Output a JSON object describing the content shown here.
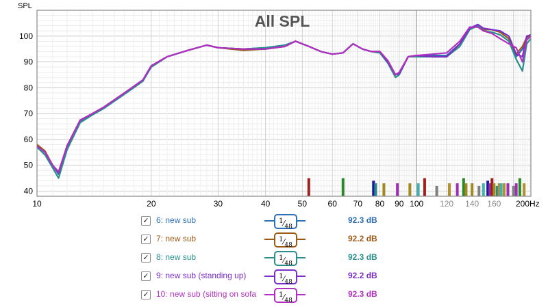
{
  "chart_data": {
    "type": "line",
    "title": "All SPL",
    "ylabel": "SPL",
    "xlabel": "",
    "x_unit_label": "200Hz",
    "x_scale": "log",
    "xlim": [
      10,
      200
    ],
    "ylim": [
      38,
      110
    ],
    "y_ticks": [
      40,
      50,
      60,
      70,
      80,
      90,
      100
    ],
    "x_ticks": [
      10,
      20,
      30,
      40,
      50,
      60,
      70,
      80,
      90,
      100,
      120,
      140,
      160
    ],
    "x_tick_labels": [
      "10",
      "20",
      "30",
      "40",
      "50",
      "60",
      "70",
      "80",
      "90",
      "100",
      "120",
      "140",
      "160"
    ],
    "grid": true,
    "x": [
      10,
      10.5,
      11,
      11.4,
      12,
      13,
      14,
      15,
      17,
      19,
      20,
      22,
      25,
      28,
      30,
      35,
      40,
      45,
      48,
      52,
      56,
      60,
      64,
      68,
      72,
      76,
      80,
      84,
      88,
      90,
      95,
      100,
      110,
      120,
      130,
      138,
      145,
      150,
      158,
      166,
      175,
      183,
      190,
      195,
      200
    ],
    "series": [
      {
        "color": "#2f6fb6",
        "values": [
          57.5,
          55,
          50,
          46.5,
          57,
          67,
          70,
          72.5,
          78,
          83,
          88,
          92,
          94.5,
          96.5,
          95.5,
          95,
          95.5,
          96.5,
          98,
          96,
          94,
          93,
          93.5,
          97,
          95,
          94,
          93.5,
          90,
          85,
          85.5,
          92,
          92.5,
          92.5,
          92.5,
          97,
          103,
          104,
          102.5,
          102.5,
          101.5,
          99,
          92,
          95,
          99.5,
          100
        ]
      },
      {
        "color": "#9c5a16",
        "values": [
          58,
          55.5,
          50,
          47,
          57.5,
          67.5,
          70,
          72.5,
          78,
          83,
          88,
          92,
          94.5,
          96.5,
          95.5,
          94.5,
          95,
          96,
          98,
          96,
          94,
          93,
          93.5,
          97,
          95,
          94,
          94,
          90.5,
          85,
          85.5,
          92,
          92.5,
          92,
          92,
          97,
          103,
          104,
          102.5,
          102.5,
          101.5,
          99,
          93,
          96,
          99.5,
          100.5
        ]
      },
      {
        "color": "#2a8f8c",
        "values": [
          57,
          54,
          49,
          45,
          56,
          66.5,
          69.5,
          72,
          77.5,
          82.5,
          88,
          92,
          94.5,
          96.5,
          95.5,
          95,
          95.5,
          96.5,
          98,
          96,
          94,
          93,
          93.5,
          97,
          95,
          94,
          93.5,
          89.5,
          84,
          85,
          92,
          92,
          92,
          92,
          96,
          102.5,
          104,
          102,
          101.5,
          100.5,
          98,
          91,
          86.5,
          97,
          99
        ]
      },
      {
        "color": "#7a2fc8",
        "values": [
          57.5,
          55,
          50,
          47,
          57.5,
          67.5,
          70,
          72.5,
          78,
          83,
          88.5,
          92,
          94.5,
          96.5,
          95.5,
          95,
          95,
          96,
          98,
          96,
          94,
          93,
          93.5,
          97,
          95,
          94,
          94,
          90,
          85,
          85.5,
          92,
          92.5,
          92,
          92,
          97,
          103,
          104.5,
          103,
          102.5,
          102,
          100,
          93,
          92,
          100,
          100.5
        ]
      },
      {
        "color": "#b030c0",
        "values": [
          57.5,
          55,
          50,
          47.5,
          57.5,
          67.5,
          70,
          72.5,
          78,
          83,
          88.5,
          92,
          94.5,
          96.5,
          95.5,
          95,
          95,
          96,
          98,
          96,
          94,
          93,
          93.5,
          97,
          95,
          94,
          94,
          90.5,
          85,
          86,
          92,
          92.5,
          93,
          93.5,
          98,
          103.5,
          103.5,
          102,
          101,
          99,
          97,
          95.5,
          90,
          98.5,
          100
        ]
      }
    ],
    "markers": [
      {
        "x": 52,
        "h": 45,
        "color": "#a02020"
      },
      {
        "x": 64,
        "h": 45,
        "color": "#2a8a2a"
      },
      {
        "x": 77,
        "h": 44,
        "color": "#1a1aa0"
      },
      {
        "x": 78,
        "h": 43,
        "color": "#2a8a8a"
      },
      {
        "x": 82,
        "h": 43,
        "color": "#a08a20"
      },
      {
        "x": 89,
        "h": 43,
        "color": "#9a30b0"
      },
      {
        "x": 96,
        "h": 43,
        "color": "#a08a20"
      },
      {
        "x": 101,
        "h": 43,
        "color": "#40b0b0"
      },
      {
        "x": 105,
        "h": 45,
        "color": "#a02020"
      },
      {
        "x": 113,
        "h": 42,
        "color": "#808080"
      },
      {
        "x": 122,
        "h": 43,
        "color": "#b09030"
      },
      {
        "x": 128,
        "h": 43,
        "color": "#9a30b0"
      },
      {
        "x": 133,
        "h": 45,
        "color": "#2a8a2a"
      },
      {
        "x": 135,
        "h": 43,
        "color": "#a08a20"
      },
      {
        "x": 140,
        "h": 43,
        "color": "#a08a20"
      },
      {
        "x": 146,
        "h": 42,
        "color": "#808080"
      },
      {
        "x": 150,
        "h": 43,
        "color": "#40b0b0"
      },
      {
        "x": 154,
        "h": 44,
        "color": "#1a1aa0"
      },
      {
        "x": 156,
        "h": 43,
        "color": "#9a30b0"
      },
      {
        "x": 158,
        "h": 45,
        "color": "#a02020"
      },
      {
        "x": 160,
        "h": 43,
        "color": "#a08a20"
      },
      {
        "x": 163,
        "h": 42,
        "color": "#2a8a8a"
      },
      {
        "x": 165,
        "h": 43,
        "color": "#b09030"
      },
      {
        "x": 167,
        "h": 43,
        "color": "#40b0b0"
      },
      {
        "x": 170,
        "h": 43,
        "color": "#b09030"
      },
      {
        "x": 174,
        "h": 43,
        "color": "#9a30b0"
      },
      {
        "x": 180,
        "h": 42,
        "color": "#808080"
      },
      {
        "x": 183,
        "h": 43,
        "color": "#9a30b0"
      },
      {
        "x": 187,
        "h": 45,
        "color": "#2a8a2a"
      },
      {
        "x": 192,
        "h": 43,
        "color": "#b09030"
      }
    ]
  },
  "legend": [
    {
      "label": "6: new sub",
      "checked": "✓",
      "smoothing_num": "1",
      "smoothing_den": "48",
      "spl": "92.3 dB",
      "color": "#2f6fb6"
    },
    {
      "label": "7: new sub",
      "checked": "✓",
      "smoothing_num": "1",
      "smoothing_den": "48",
      "spl": "92.2 dB",
      "color": "#9c5a16"
    },
    {
      "label": "8: new sub",
      "checked": "✓",
      "smoothing_num": "1",
      "smoothing_den": "48",
      "spl": "92.3 dB",
      "color": "#2a8f8c"
    },
    {
      "label": "9: new sub (standing up)",
      "checked": "✓",
      "smoothing_num": "1",
      "smoothing_den": "48",
      "spl": "92.2 dB",
      "color": "#7a2fc8"
    },
    {
      "label": "10: new sub (sitting on sofa",
      "checked": "✓",
      "smoothing_num": "1",
      "smoothing_den": "48",
      "spl": "92.3 dB",
      "color": "#b030c0"
    }
  ]
}
